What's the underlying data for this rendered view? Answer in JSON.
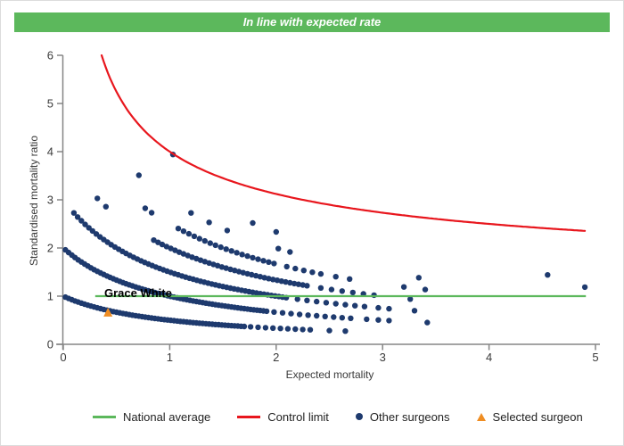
{
  "header": {
    "title": "In line with expected rate",
    "bg_color": "#5cb85c",
    "text_color": "#ffffff"
  },
  "chart_data": {
    "type": "scatter",
    "title": "",
    "xlabel": "Expected mortality",
    "ylabel": "Standardised mortality ratio",
    "xlim": [
      0,
      5
    ],
    "ylim": [
      0,
      6
    ],
    "x_ticks": [
      0,
      1,
      2,
      3,
      4,
      5
    ],
    "y_ticks": [
      0,
      1,
      2,
      3,
      4,
      5,
      6
    ],
    "grid": false,
    "legend_position": "bottom",
    "axis_color": "#858585",
    "tick_label_color": "#3a3a3a",
    "series": {
      "national_average": {
        "label": "National average",
        "color": "#5cb85c",
        "y": 1,
        "x_start": 0.3,
        "x_end": 4.91
      },
      "control_limit": {
        "label": "Control limit",
        "color": "#e8161d",
        "formula": "y = 1 + 3/sqrt(x)",
        "intercept": 1,
        "coefficient": 3,
        "exponent": -0.5,
        "x_start": 0.36,
        "x_end": 4.9
      },
      "other_surgeons": {
        "label": "Other surgeons",
        "color": "#1e3a6e",
        "marker": "circle",
        "smr_formula": "y = deaths / (expected + 1)",
        "denominator_offset": 1,
        "bands": [
          {
            "deaths": 1,
            "segments": [
              {
                "from": 0.02,
                "to": 1.7,
                "step": 0.03
              },
              {
                "from": 1.76,
                "to": 2.32,
                "step": 0.07
              }
            ],
            "extra_x": [
              2.5,
              2.65
            ]
          },
          {
            "deaths": 2,
            "segments": [
              {
                "from": 0.02,
                "to": 1.9,
                "step": 0.03
              },
              {
                "from": 1.98,
                "to": 2.7,
                "step": 0.08
              }
            ],
            "extra_x": [
              2.85,
              2.96,
              3.06,
              3.42
            ]
          },
          {
            "deaths": 3,
            "segments": [
              {
                "from": 0.1,
                "to": 2.1,
                "step": 0.035
              },
              {
                "from": 2.2,
                "to": 2.85,
                "step": 0.09
              }
            ],
            "extra_x": [
              2.96,
              3.06,
              3.3
            ]
          },
          {
            "deaths": 4,
            "segments": [
              {
                "from": 0.85,
                "to": 2.3,
                "step": 0.04
              },
              {
                "from": 2.42,
                "to": 2.92,
                "step": 0.1
              }
            ],
            "extra_x": [
              0.32,
              0.4,
              3.26
            ]
          },
          {
            "deaths": 5,
            "segments": [
              {
                "from": 1.08,
                "to": 2.0,
                "step": 0.05
              },
              {
                "from": 2.1,
                "to": 2.42,
                "step": 0.08
              }
            ],
            "extra_x": [
              0.77,
              0.83,
              2.56,
              2.69,
              3.2,
              3.4
            ]
          },
          {
            "deaths": 6,
            "segments": [
              {
                "from": 1.2,
                "to": 1.6,
                "step": 0.17
              }
            ],
            "extra_x": [
              0.71,
              2.02,
              2.13,
              3.34
            ]
          },
          {
            "deaths": 7,
            "segments": [],
            "extra_x": [
              1.78,
              2.0,
              4.9
            ]
          },
          {
            "deaths": 8,
            "segments": [],
            "extra_x": [
              1.03,
              4.55
            ]
          }
        ]
      },
      "selected_surgeon": {
        "label": "Selected surgeon",
        "color": "#ef8d22",
        "marker": "triangle",
        "name": "Grace White",
        "expected": 0.42,
        "smr": 0.66
      }
    }
  },
  "legend": {
    "items": [
      {
        "label": "National average",
        "swatch": "line",
        "color": "#5cb85c"
      },
      {
        "label": "Control limit",
        "swatch": "line",
        "color": "#e8161d"
      },
      {
        "label": "Other surgeons",
        "swatch": "dot",
        "color": "#1e3a6e"
      },
      {
        "label": "Selected surgeon",
        "swatch": "triangle",
        "color": "#ef8d22"
      }
    ]
  }
}
